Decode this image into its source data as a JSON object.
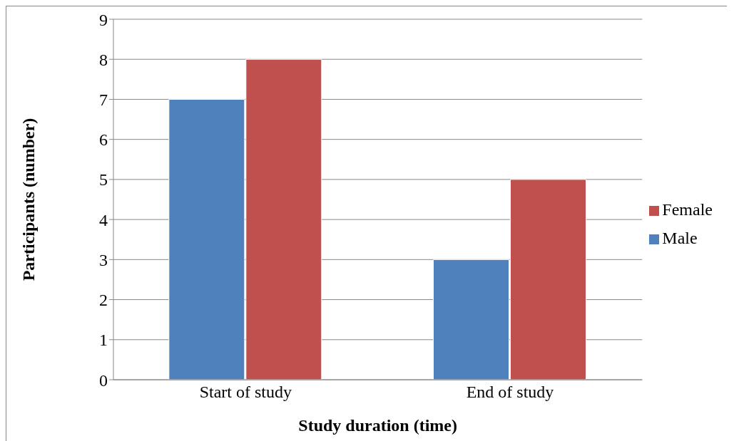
{
  "chart_data": {
    "type": "bar",
    "xlabel": "Study duration (time)",
    "ylabel": "Participants (number)",
    "categories": [
      "Start of study",
      "End of study"
    ],
    "series": [
      {
        "name": "Male",
        "color": "#4f81bd",
        "values": [
          7,
          3
        ]
      },
      {
        "name": "Female",
        "color": "#c0504d",
        "values": [
          8,
          5
        ]
      }
    ],
    "ylim": [
      0,
      9
    ],
    "yticks": [
      0,
      1,
      2,
      3,
      4,
      5,
      6,
      7,
      8,
      9
    ],
    "grid": "y",
    "legend": "right"
  }
}
